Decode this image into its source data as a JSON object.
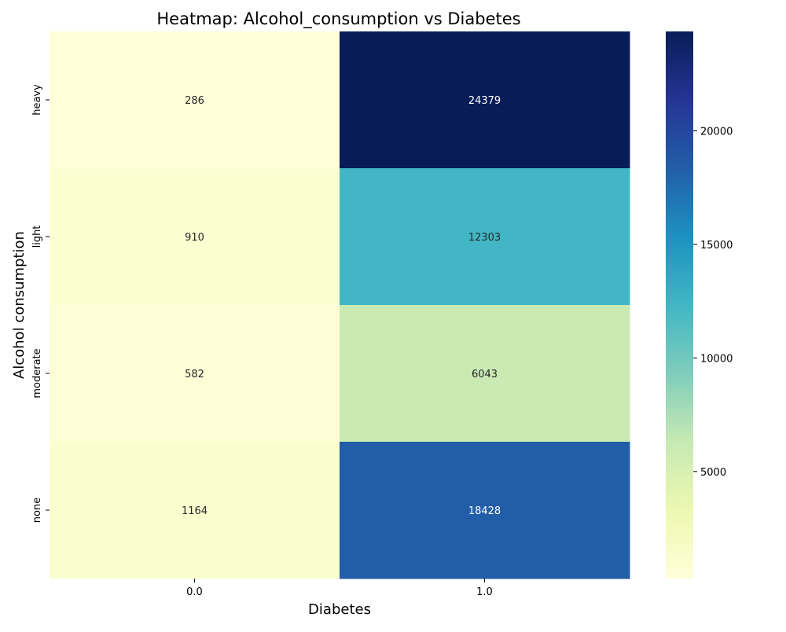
{
  "chart_data": {
    "type": "heatmap",
    "title": "Heatmap: Alcohol_consumption vs Diabetes",
    "xlabel": "Diabetes",
    "ylabel": "Alcohol consumption",
    "x_categories": [
      "0.0",
      "1.0"
    ],
    "y_categories": [
      "heavy",
      "light",
      "moderate",
      "none"
    ],
    "values": [
      [
        286,
        24379
      ],
      [
        910,
        12303
      ],
      [
        582,
        6043
      ],
      [
        1164,
        18428
      ]
    ],
    "colormap": "YlGnBu",
    "color_range": [
      286,
      24379
    ],
    "colorbar_ticks": [
      5000,
      10000,
      15000,
      20000
    ],
    "colorbar_tick_labels": [
      "5000",
      "10000",
      "15000",
      "20000"
    ],
    "annotation_colors": {
      "dark_text": "#262626",
      "light_text": "#ffffff"
    },
    "grid": false
  }
}
